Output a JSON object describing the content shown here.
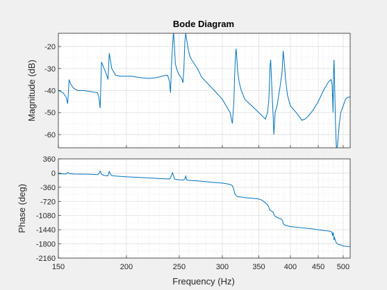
{
  "chart_data": [
    {
      "type": "line",
      "title": "Bode Diagram",
      "ylabel": "Magnitude (dB)",
      "xlabel": "",
      "xscale": "log",
      "xlim": [
        150,
        515
      ],
      "ylim": [
        -66,
        -14
      ],
      "yticks": [
        -20,
        -30,
        -40,
        -50,
        -60
      ],
      "grid": true,
      "color": "#0072bd",
      "series": [
        {
          "x": [
            150,
            153,
            155,
            156,
            157,
            158,
            160,
            163,
            167,
            172,
            177,
            178,
            179,
            180,
            182,
            184,
            185,
            186,
            188,
            191,
            195,
            200,
            205,
            210,
            215,
            220,
            225,
            230,
            235,
            238,
            240,
            241,
            242,
            243,
            244,
            245,
            246,
            248,
            250,
            252,
            253,
            254,
            255,
            256,
            257,
            258,
            259,
            260,
            262,
            265,
            270,
            275,
            280,
            290,
            300,
            305,
            310,
            313,
            315,
            316,
            317,
            318,
            319,
            320,
            322,
            325,
            330,
            340,
            350,
            360,
            363,
            365,
            366,
            367,
            368,
            370,
            372,
            373,
            374,
            375,
            378,
            382,
            386,
            388,
            390,
            392,
            395,
            400,
            410,
            420,
            425,
            430,
            440,
            450,
            460,
            470,
            475,
            477,
            478,
            479,
            480,
            481,
            482,
            484,
            486,
            488,
            490,
            492,
            495,
            500,
            505,
            510,
            515
          ],
          "y": [
            -40,
            -41,
            -43,
            -46,
            -35,
            -37,
            -39,
            -40,
            -40,
            -40.5,
            -41,
            -43,
            -48,
            -27,
            -30,
            -33,
            -35,
            -23,
            -30,
            -33,
            -33.5,
            -33.5,
            -33.5,
            -34,
            -34.3,
            -34.5,
            -34.3,
            -33.8,
            -33.2,
            -33,
            -36,
            -41,
            -28,
            -20,
            -13,
            -20,
            -28,
            -31,
            -33,
            -34,
            -35,
            -36.5,
            -30,
            -18,
            -14,
            -17,
            -19.5,
            -22,
            -25,
            -27,
            -30,
            -34,
            -36,
            -40,
            -44,
            -47,
            -50,
            -55,
            -45,
            -33,
            -25,
            -21,
            -26,
            -31,
            -36,
            -40,
            -44,
            -47,
            -50,
            -53,
            -50,
            -45,
            -38,
            -29,
            -26,
            -40,
            -52,
            -60,
            -55,
            -50,
            -47,
            -40,
            -32,
            -22,
            -28,
            -35,
            -42,
            -47,
            -50,
            -53.5,
            -53,
            -52,
            -49,
            -45,
            -40,
            -36,
            -35,
            -37,
            -42,
            -50,
            -32,
            -26,
            -35,
            -55,
            -67,
            -65,
            -60,
            -55,
            -50,
            -47,
            -44,
            -43,
            -43
          ]
        }
      ]
    },
    {
      "type": "line",
      "title": "",
      "ylabel": "Phase (deg)",
      "xlabel": "Frequency  (Hz)",
      "xscale": "log",
      "xlim": [
        150,
        515
      ],
      "xticks": [
        150,
        200,
        250,
        300,
        350,
        400,
        450,
        500
      ],
      "ylim": [
        -2160,
        360
      ],
      "yticks": [
        360,
        0,
        -360,
        -720,
        -1080,
        -1440,
        -1800,
        -2160
      ],
      "grid": true,
      "color": "#0072bd",
      "series": [
        {
          "x": [
            150,
            155,
            156,
            157,
            158,
            160,
            170,
            177,
            178,
            179,
            180,
            182,
            185,
            186,
            187,
            188,
            190,
            200,
            210,
            220,
            230,
            240,
            241,
            242,
            243,
            244,
            245,
            246,
            248,
            250,
            255,
            256,
            257,
            258,
            260,
            270,
            280,
            290,
            300,
            305,
            310,
            313,
            315,
            316,
            318,
            320,
            325,
            330,
            340,
            350,
            355,
            360,
            363,
            365,
            366,
            368,
            370,
            372,
            373,
            375,
            380,
            385,
            387,
            388,
            389,
            390,
            392,
            395,
            400,
            420,
            440,
            460,
            475,
            477,
            478,
            479,
            480,
            481,
            482,
            484,
            486,
            490,
            495,
            500,
            505,
            510,
            515
          ],
          "y": [
            -20,
            -25,
            15,
            -10,
            -20,
            -25,
            -30,
            -40,
            -20,
            50,
            -30,
            -60,
            -70,
            40,
            -30,
            -65,
            -75,
            -95,
            -110,
            -125,
            -140,
            -150,
            -120,
            -60,
            10,
            -60,
            -150,
            -160,
            -165,
            -170,
            -175,
            -150,
            -80,
            -170,
            -185,
            -200,
            -220,
            -240,
            -255,
            -270,
            -290,
            -320,
            -420,
            -520,
            -570,
            -600,
            -610,
            -625,
            -640,
            -660,
            -690,
            -760,
            -800,
            -860,
            -930,
            -950,
            -975,
            -990,
            -1050,
            -1100,
            -1140,
            -1170,
            -1210,
            -1280,
            -1300,
            -1310,
            -1330,
            -1340,
            -1360,
            -1390,
            -1420,
            -1460,
            -1480,
            -1520,
            -1600,
            -1510,
            -1550,
            -1700,
            -1640,
            -1720,
            -1780,
            -1810,
            -1830,
            -1850,
            -1860,
            -1865,
            -1870
          ]
        }
      ]
    }
  ]
}
